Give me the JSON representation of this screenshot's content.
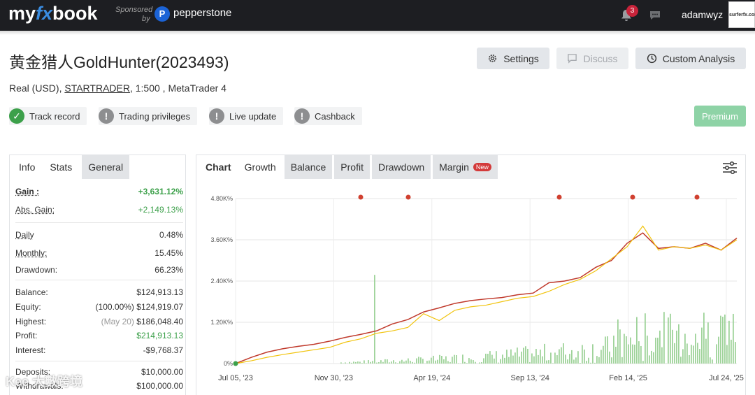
{
  "topbar": {
    "logo_prefix": "my",
    "logo_fx": "fx",
    "logo_suffix": "book",
    "sponsored": "Sponsored",
    "sponsored_by": "by",
    "sponsor_name": "pepperstone",
    "notifications_count": "3",
    "username": "adamwyz",
    "avatar_text": "surferfx.com"
  },
  "header": {
    "title": "黄金猎人GoldHunter(2023493)",
    "subtitle_prefix": "Real (USD), ",
    "broker": "STARTRADER",
    "subtitle_suffix": ", 1:500 , MetaTrader 4",
    "settings_label": "Settings",
    "discuss_label": "Discuss",
    "custom_analysis_label": "Custom Analysis",
    "premium_label": "Premium"
  },
  "status_badges": [
    {
      "label": "Track record",
      "state": "ok"
    },
    {
      "label": "Trading privileges",
      "state": "warn"
    },
    {
      "label": "Live update",
      "state": "warn"
    },
    {
      "label": "Cashback",
      "state": "warn"
    }
  ],
  "stats_panel": {
    "tabs": [
      "Info",
      "Stats",
      "General"
    ],
    "rows": [
      {
        "label": "Gain :",
        "value": "+3,631.12%"
      },
      {
        "label": "Abs. Gain:",
        "value": "+2,149.13%"
      },
      {
        "label": "Daily",
        "value": "0.48%"
      },
      {
        "label": "Monthly:",
        "value": "15.45%"
      },
      {
        "label": "Drawdown:",
        "value": "66.23%"
      },
      {
        "label": "Balance:",
        "value": "$124,913.13"
      },
      {
        "label": "Equity:",
        "prefix": "(100.00%)",
        "value": "$124,919.07"
      },
      {
        "label": "Highest:",
        "prefix": "(May 20)",
        "value": "$186,048.40"
      },
      {
        "label": "Profit:",
        "value": "$214,913.13"
      },
      {
        "label": "Interest:",
        "value": "-$9,768.37"
      },
      {
        "label": "Deposits:",
        "value": "$10,000.00"
      },
      {
        "label": "Withdrawals:",
        "value": "$100,000.00"
      }
    ]
  },
  "chart_panel": {
    "tabs": [
      "Chart",
      "Growth",
      "Balance",
      "Profit",
      "Drawdown",
      "Margin"
    ],
    "new_badge": "New"
  },
  "watermark": "Kee 大數跨境",
  "colors": {
    "growth_line": "#c0392b",
    "equity_line": "#f1c40f",
    "bars": "#9fd39a",
    "marker": "#d04030"
  },
  "chart_data": {
    "type": "line",
    "x_ticks": [
      "Jul 05, '23",
      "Nov 30, '23",
      "Apr 19, '24",
      "Sep 13, '24",
      "Feb 14, '25",
      "Jul 24, '25"
    ],
    "y_ticks": [
      "0%",
      "1.20K%",
      "2.40K%",
      "3.60K%",
      "4.80K%"
    ],
    "ylim": [
      0,
      4800
    ],
    "grid": true,
    "series": [
      {
        "values": [
          0,
          180,
          330,
          430,
          500,
          560,
          650,
          760,
          850,
          950,
          1150,
          1280,
          1500,
          1620,
          1750,
          1830,
          1880,
          1920,
          2000,
          2050,
          2350,
          2400,
          2500,
          2800,
          3000,
          3500,
          3800,
          3350,
          3400,
          3350,
          3500,
          3300,
          3650
        ]
      },
      {
        "values": [
          0,
          80,
          180,
          260,
          330,
          400,
          470,
          620,
          720,
          880,
          950,
          1050,
          1450,
          1250,
          1550,
          1650,
          1700,
          1800,
          1900,
          1950,
          2100,
          2300,
          2450,
          2700,
          3050,
          3400,
          4000,
          3300,
          3400,
          3350,
          3450,
          3300,
          3600
        ]
      }
    ]
  }
}
